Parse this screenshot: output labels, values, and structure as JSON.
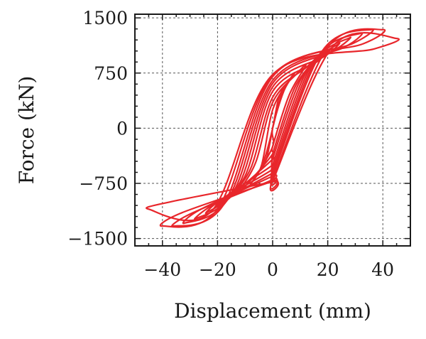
{
  "chart_data": {
    "type": "line",
    "title": "",
    "xlabel": "Displacement (mm)",
    "ylabel": "Force (kN)",
    "xlim": [
      -50,
      50
    ],
    "ylim": [
      -1600,
      1550
    ],
    "xticks": [
      -40,
      -20,
      0,
      20,
      40
    ],
    "xtick_labels": [
      "−40",
      "−20",
      "0",
      "20",
      "40"
    ],
    "yticks": [
      1500,
      750,
      0,
      -750,
      -1500
    ],
    "ytick_labels": [
      "1500",
      "750",
      "0",
      "−750",
      "−1500"
    ],
    "grid": true,
    "line_color": "#e8262b",
    "series": [
      {
        "values": [
          [
            0,
            0
          ],
          [
            2,
            300
          ],
          [
            4,
            550
          ],
          [
            2,
            380
          ],
          [
            0,
            0
          ],
          [
            -2,
            -300
          ],
          [
            -4,
            -550
          ],
          [
            -2,
            -380
          ],
          [
            0,
            0
          ]
        ]
      },
      {
        "values": [
          [
            0,
            0
          ],
          [
            4,
            500
          ],
          [
            8,
            750
          ],
          [
            6,
            650
          ],
          [
            0,
            250
          ],
          [
            -4,
            -500
          ],
          [
            -8,
            -750
          ],
          [
            -6,
            -650
          ],
          [
            0,
            -250
          ]
        ]
      },
      {
        "values": [
          [
            0,
            -250
          ],
          [
            6,
            450
          ],
          [
            12,
            850
          ],
          [
            9,
            750
          ],
          [
            0,
            350
          ],
          [
            -6,
            -450
          ],
          [
            -12,
            -850
          ],
          [
            -9,
            -750
          ],
          [
            0,
            -350
          ]
        ]
      },
      {
        "values": [
          [
            0,
            -350
          ],
          [
            8,
            550
          ],
          [
            16,
            950
          ],
          [
            12,
            820
          ],
          [
            0,
            420
          ],
          [
            -8,
            -550
          ],
          [
            -16,
            -950
          ],
          [
            -12,
            -820
          ],
          [
            0,
            -420
          ]
        ]
      },
      {
        "values": [
          [
            0,
            -420
          ],
          [
            10,
            650
          ],
          [
            20,
            1050
          ],
          [
            16,
            900
          ],
          [
            0,
            500
          ],
          [
            -10,
            -650
          ],
          [
            -20,
            -1050
          ],
          [
            -16,
            -900
          ],
          [
            0,
            -500
          ]
        ]
      },
      {
        "values": [
          [
            0,
            -500
          ],
          [
            12,
            750
          ],
          [
            24,
            1150
          ],
          [
            19,
            980
          ],
          [
            0,
            560
          ],
          [
            -12,
            -750
          ],
          [
            -24,
            -1150
          ],
          [
            -19,
            -980
          ],
          [
            0,
            -560
          ]
        ]
      },
      {
        "values": [
          [
            0,
            -560
          ],
          [
            14,
            850
          ],
          [
            28,
            1230
          ],
          [
            22,
            1050
          ],
          [
            0,
            610
          ],
          [
            -14,
            -850
          ],
          [
            -28,
            -1230
          ],
          [
            -22,
            -1050
          ],
          [
            0,
            -610
          ]
        ]
      },
      {
        "values": [
          [
            0,
            -610
          ],
          [
            16,
            950
          ],
          [
            32,
            1290
          ],
          [
            26,
            1100
          ],
          [
            0,
            650
          ],
          [
            -16,
            -950
          ],
          [
            -32,
            -1290
          ],
          [
            -26,
            -1100
          ],
          [
            0,
            -650
          ]
        ]
      },
      {
        "values": [
          [
            0,
            -650
          ],
          [
            18,
            1050
          ],
          [
            36,
            1340
          ],
          [
            29,
            1150
          ],
          [
            0,
            700
          ],
          [
            -18,
            -1050
          ],
          [
            -36,
            -1330
          ],
          [
            -29,
            -1150
          ],
          [
            0,
            -700
          ]
        ]
      },
      {
        "values": [
          [
            0,
            -700
          ],
          [
            20,
            1100
          ],
          [
            40,
            1340
          ],
          [
            33,
            1150
          ],
          [
            0,
            720
          ],
          [
            -20,
            -1100
          ],
          [
            -40,
            -1330
          ],
          [
            -33,
            -1150
          ],
          [
            0,
            -720
          ]
        ]
      },
      {
        "values": [
          [
            0,
            -720
          ],
          [
            22,
            1120
          ],
          [
            45,
            1220
          ],
          [
            37,
            1080
          ],
          [
            0,
            730
          ],
          [
            -22,
            -1120
          ],
          [
            -45,
            -1100
          ],
          [
            -37,
            -1000
          ],
          [
            0,
            -730
          ]
        ]
      }
    ]
  }
}
